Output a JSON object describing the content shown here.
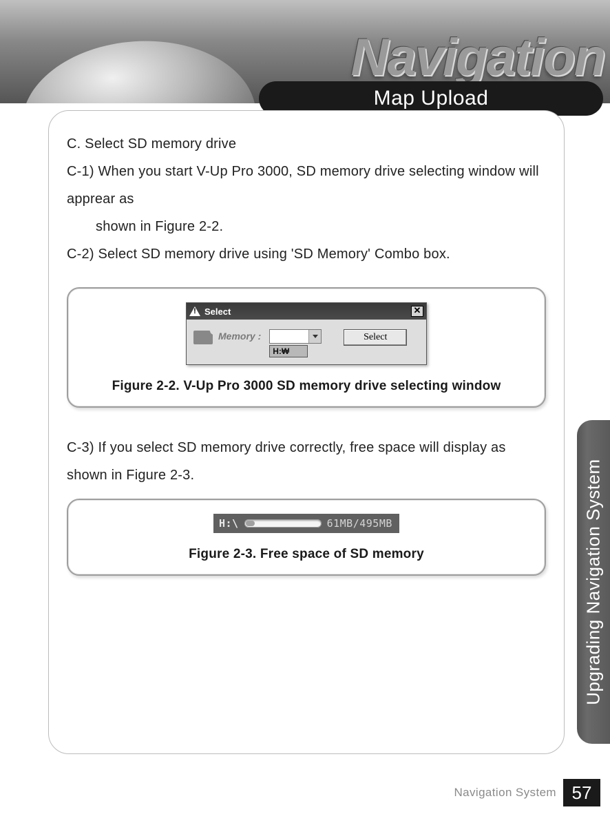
{
  "banner": {
    "word": "Navigation",
    "chapter_tab": "Map Upload"
  },
  "side_tab": "Upgrading Navigation System",
  "content": {
    "c_heading": "C. Select SD memory drive",
    "c1_line1": "C-1) When you start V-Up Pro 3000, SD memory drive selecting window will apprear as",
    "c1_line2": "shown in Figure 2-2.",
    "c2": "C-2) Select SD memory drive using  'SD Memory'  Combo box.",
    "c3": "C-3) If you select SD memory drive correctly, free space will display as shown in Figure 2-3."
  },
  "figure22": {
    "caption": "Figure 2-2. V-Up Pro 3000 SD memory drive selecting window",
    "dialog": {
      "title": "Select",
      "close_glyph": "✕",
      "sd_label": "Memory :",
      "combo_value": "",
      "combo_option": "H:₩",
      "button": "Select"
    }
  },
  "figure23": {
    "caption": "Figure 2-3. Free space of SD memory",
    "bar": {
      "drive": "H:\\",
      "used_mb": 61,
      "total_mb": 495,
      "text": "61MB/495MB",
      "fill_percent": 12.3,
      "bg_color": "#606060",
      "meter_bg": "#f4f4f4",
      "meter_fill": "#a0a0a0",
      "text_color": "#d4d4d4"
    }
  },
  "footer": {
    "label": "Navigation System",
    "page": "57"
  },
  "colors": {
    "tab_bg": "#1a1a1a",
    "side_tab_bg": "#606060",
    "border": "#bcbcbc",
    "text": "#222222"
  }
}
